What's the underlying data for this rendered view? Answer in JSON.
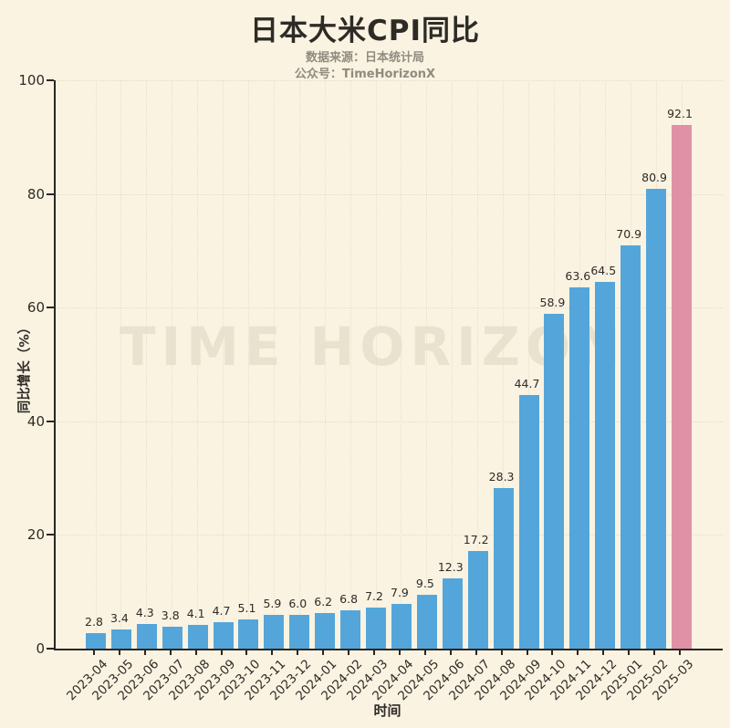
{
  "chart_data": {
    "type": "bar",
    "title": "日本大米CPI同比",
    "source_line": "数据来源：日本统计局",
    "account_line": "公众号：TimeHorizonX",
    "xlabel": "时间",
    "ylabel": "同比增长（%）",
    "watermark": "TIME HORIZON",
    "ylim": [
      0,
      100
    ],
    "yticks": [
      0,
      20,
      40,
      60,
      80,
      100
    ],
    "grid": "dotted",
    "legend": "none",
    "categories": [
      "2023-04",
      "2023-05",
      "2023-06",
      "2023-07",
      "2023-08",
      "2023-09",
      "2023-10",
      "2023-11",
      "2023-12",
      "2024-01",
      "2024-02",
      "2024-03",
      "2024-04",
      "2024-05",
      "2024-06",
      "2024-07",
      "2024-08",
      "2024-09",
      "2024-10",
      "2024-11",
      "2024-12",
      "2025-01",
      "2025-02",
      "2025-03"
    ],
    "values": [
      2.8,
      3.4,
      4.3,
      3.8,
      4.1,
      4.7,
      5.1,
      5.9,
      6.0,
      6.2,
      6.8,
      7.2,
      7.9,
      9.5,
      12.3,
      17.2,
      28.3,
      44.7,
      58.9,
      63.6,
      64.5,
      70.9,
      80.9,
      92.1
    ],
    "bar_color": "#54a6da",
    "highlight_color": "#e191a5",
    "highlight_index": 23,
    "background_color": "#faf3e2",
    "axis_color": "#2a2722"
  }
}
